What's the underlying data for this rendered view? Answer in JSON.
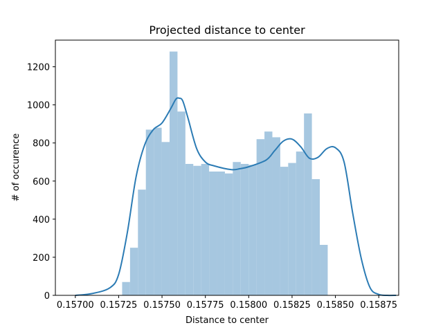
{
  "chart_data": {
    "type": "bar",
    "title": "Projected distance to center",
    "xlabel": "Distance to center",
    "ylabel": "# of occurence",
    "xlim": [
      0.156885,
      0.158865
    ],
    "ylim": [
      0,
      1340
    ],
    "xticks": [
      0.157,
      0.15725,
      0.1575,
      0.15775,
      0.158,
      0.15825,
      0.1585,
      0.15875
    ],
    "xtick_labels": [
      "0.15700",
      "0.15725",
      "0.15750",
      "0.15775",
      "0.15800",
      "0.15825",
      "0.15850",
      "0.15875"
    ],
    "yticks": [
      0,
      200,
      400,
      600,
      800,
      1000,
      1200
    ],
    "ytick_labels": [
      "0",
      "200",
      "400",
      "600",
      "800",
      "1000",
      "1200"
    ],
    "bar_color": "#a6c7e0",
    "kde_color": "#2b7bb4",
    "histogram": {
      "bin_start": 0.15727,
      "bin_width": 4.56e-05,
      "counts": [
        70,
        250,
        555,
        870,
        880,
        805,
        1280,
        965,
        690,
        680,
        690,
        650,
        650,
        640,
        700,
        690,
        685,
        820,
        860,
        830,
        675,
        695,
        755,
        955,
        610,
        265
      ]
    },
    "kde": {
      "x": [
        0.157,
        0.1571,
        0.1572,
        0.15725,
        0.1573,
        0.15735,
        0.1574,
        0.15745,
        0.1575,
        0.15755,
        0.15758,
        0.1576,
        0.15762,
        0.15765,
        0.1577,
        0.15775,
        0.1578,
        0.1579,
        0.15795,
        0.158,
        0.1581,
        0.15815,
        0.1582,
        0.15825,
        0.1583,
        0.15835,
        0.1584,
        0.15845,
        0.1585,
        0.15855,
        0.1586,
        0.15865,
        0.1587,
        0.15875,
        0.1588,
        0.15885
      ],
      "y": [
        0,
        10,
        40,
        110,
        330,
        620,
        790,
        870,
        905,
        980,
        1030,
        1035,
        1020,
        930,
        770,
        700,
        680,
        660,
        665,
        675,
        710,
        760,
        810,
        820,
        780,
        720,
        725,
        770,
        775,
        700,
        430,
        190,
        40,
        5,
        0,
        0
      ]
    }
  }
}
